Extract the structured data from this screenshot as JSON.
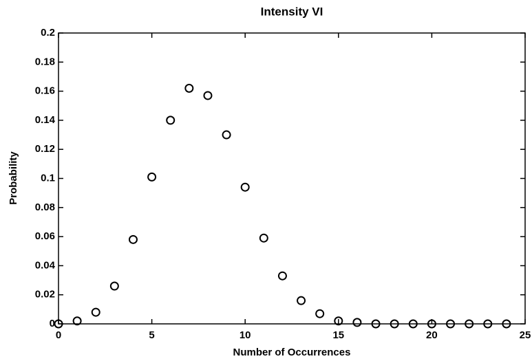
{
  "chart_data": {
    "type": "scatter",
    "title": "Intensity VI",
    "xlabel": "Number of Occurrences",
    "ylabel": "Probability",
    "x": [
      0,
      1,
      2,
      3,
      4,
      5,
      6,
      7,
      8,
      9,
      10,
      11,
      12,
      13,
      14,
      15,
      16,
      17,
      18,
      19,
      20,
      21,
      22,
      23,
      24
    ],
    "values": [
      0.0,
      0.002,
      0.008,
      0.026,
      0.058,
      0.101,
      0.14,
      0.162,
      0.157,
      0.13,
      0.094,
      0.059,
      0.033,
      0.016,
      0.007,
      0.002,
      0.001,
      0.0,
      0.0,
      0.0,
      0.0,
      0.0,
      0.0,
      0.0,
      0.0
    ],
    "color": "#000000",
    "xlim": [
      0,
      25
    ],
    "xticks": [
      0,
      5,
      10,
      15,
      20,
      25
    ],
    "ylim": [
      0,
      0.2
    ],
    "yticks": [
      0,
      0.02,
      0.04,
      0.06,
      0.08,
      0.1,
      0.12,
      0.14,
      0.16,
      0.18,
      0.2
    ],
    "grid": false
  }
}
